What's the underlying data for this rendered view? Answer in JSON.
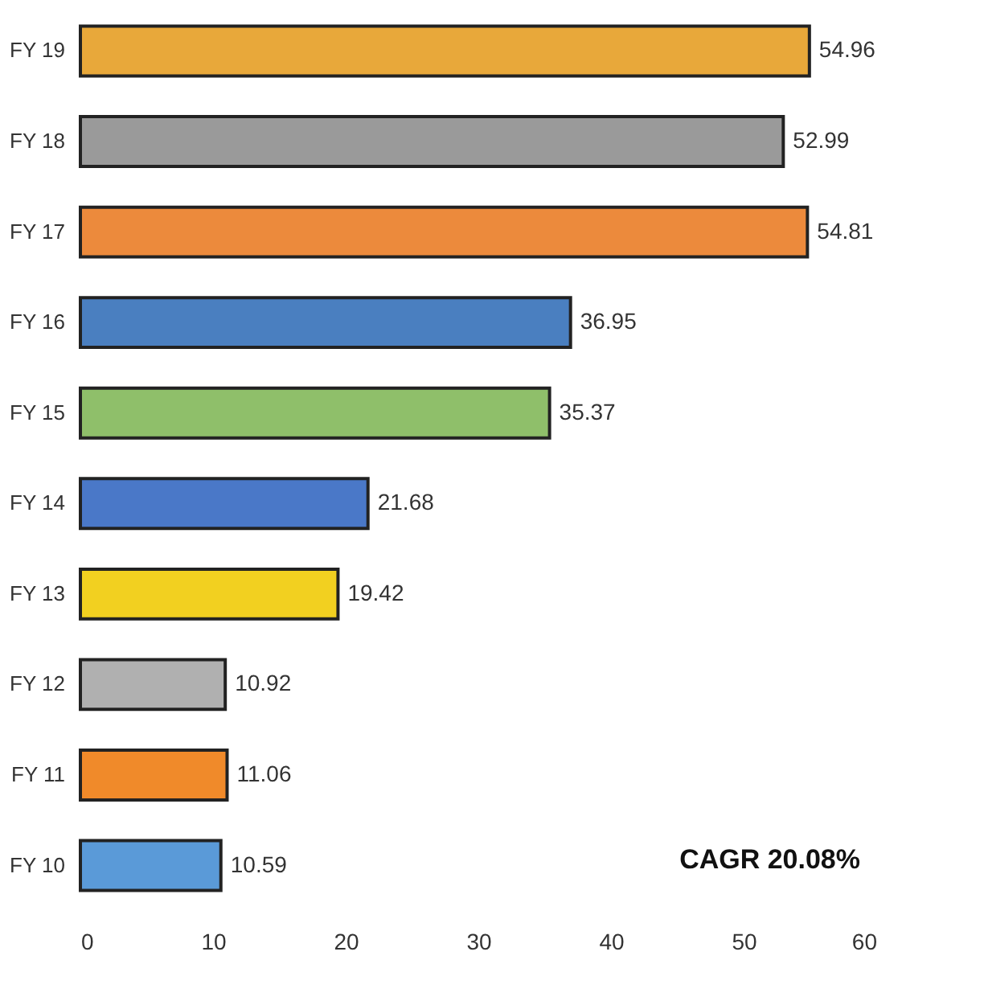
{
  "chart_data": {
    "type": "bar",
    "orientation": "horizontal",
    "categories": [
      "FY 19",
      "FY 18",
      "FY 17",
      "FY 16",
      "FY 15",
      "FY 14",
      "FY 13",
      "FY 12",
      "FY 11",
      "FY 10"
    ],
    "values": [
      54.96,
      52.99,
      54.81,
      36.95,
      35.37,
      21.68,
      19.42,
      10.92,
      11.06,
      10.59
    ],
    "colors": [
      "#e8a83a",
      "#9a9a9a",
      "#ec8a3c",
      "#4a7fc0",
      "#8fbf6a",
      "#4a78c8",
      "#f2d020",
      "#b0b0b0",
      "#f08a2a",
      "#5a9ad8"
    ],
    "xlim": [
      0,
      60
    ],
    "xticks": [
      0,
      10,
      20,
      30,
      40,
      50,
      60
    ],
    "data_labels": true,
    "grid": false,
    "annotations": [
      "CAGR 20.08%"
    ]
  }
}
